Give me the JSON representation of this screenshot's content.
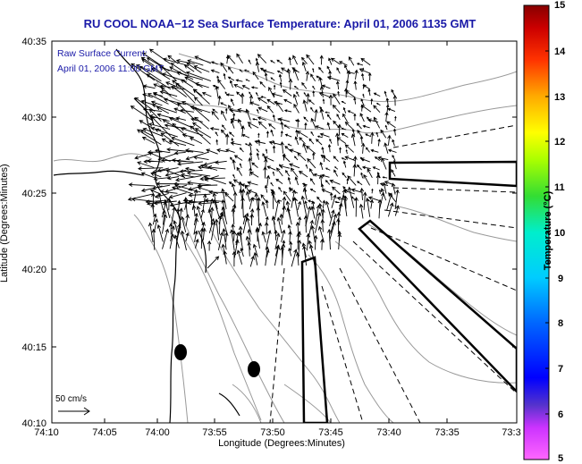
{
  "title": "RU COOL  NOAA−12  Sea Surface Temperature:  April 01, 2006 1135 GMT",
  "legend": {
    "line1": "Raw Surface Current:",
    "line2": "April 01, 2006 11:00 GMT"
  },
  "scale": {
    "label": "50 cm/s"
  },
  "axes": {
    "xlabel": "Longitude (Degrees:Minutes)",
    "ylabel": "Latitude (Degrees:Minutes)",
    "xticks": [
      "74:10",
      "74:05",
      "74:00",
      "73:55",
      "73:50",
      "73:45",
      "73:40",
      "73:35",
      "73:3"
    ],
    "yticks": [
      "40:35",
      "40:30",
      "40:25",
      "40:20",
      "40:15",
      "40:10"
    ]
  },
  "colorbar": {
    "label": "Temperature (°C)",
    "ticks": [
      "15",
      "14",
      "13",
      "12",
      "11",
      "10",
      "9",
      "8",
      "7",
      "6",
      "5"
    ],
    "colors": [
      "#ff55ff",
      "#8a2be2",
      "#0000ff",
      "#0066ff",
      "#00bbff",
      "#00eeaa",
      "#33dd33",
      "#aaff00",
      "#ffff00",
      "#ffaa00",
      "#ff3300",
      "#cc0000",
      "#880000"
    ]
  }
}
